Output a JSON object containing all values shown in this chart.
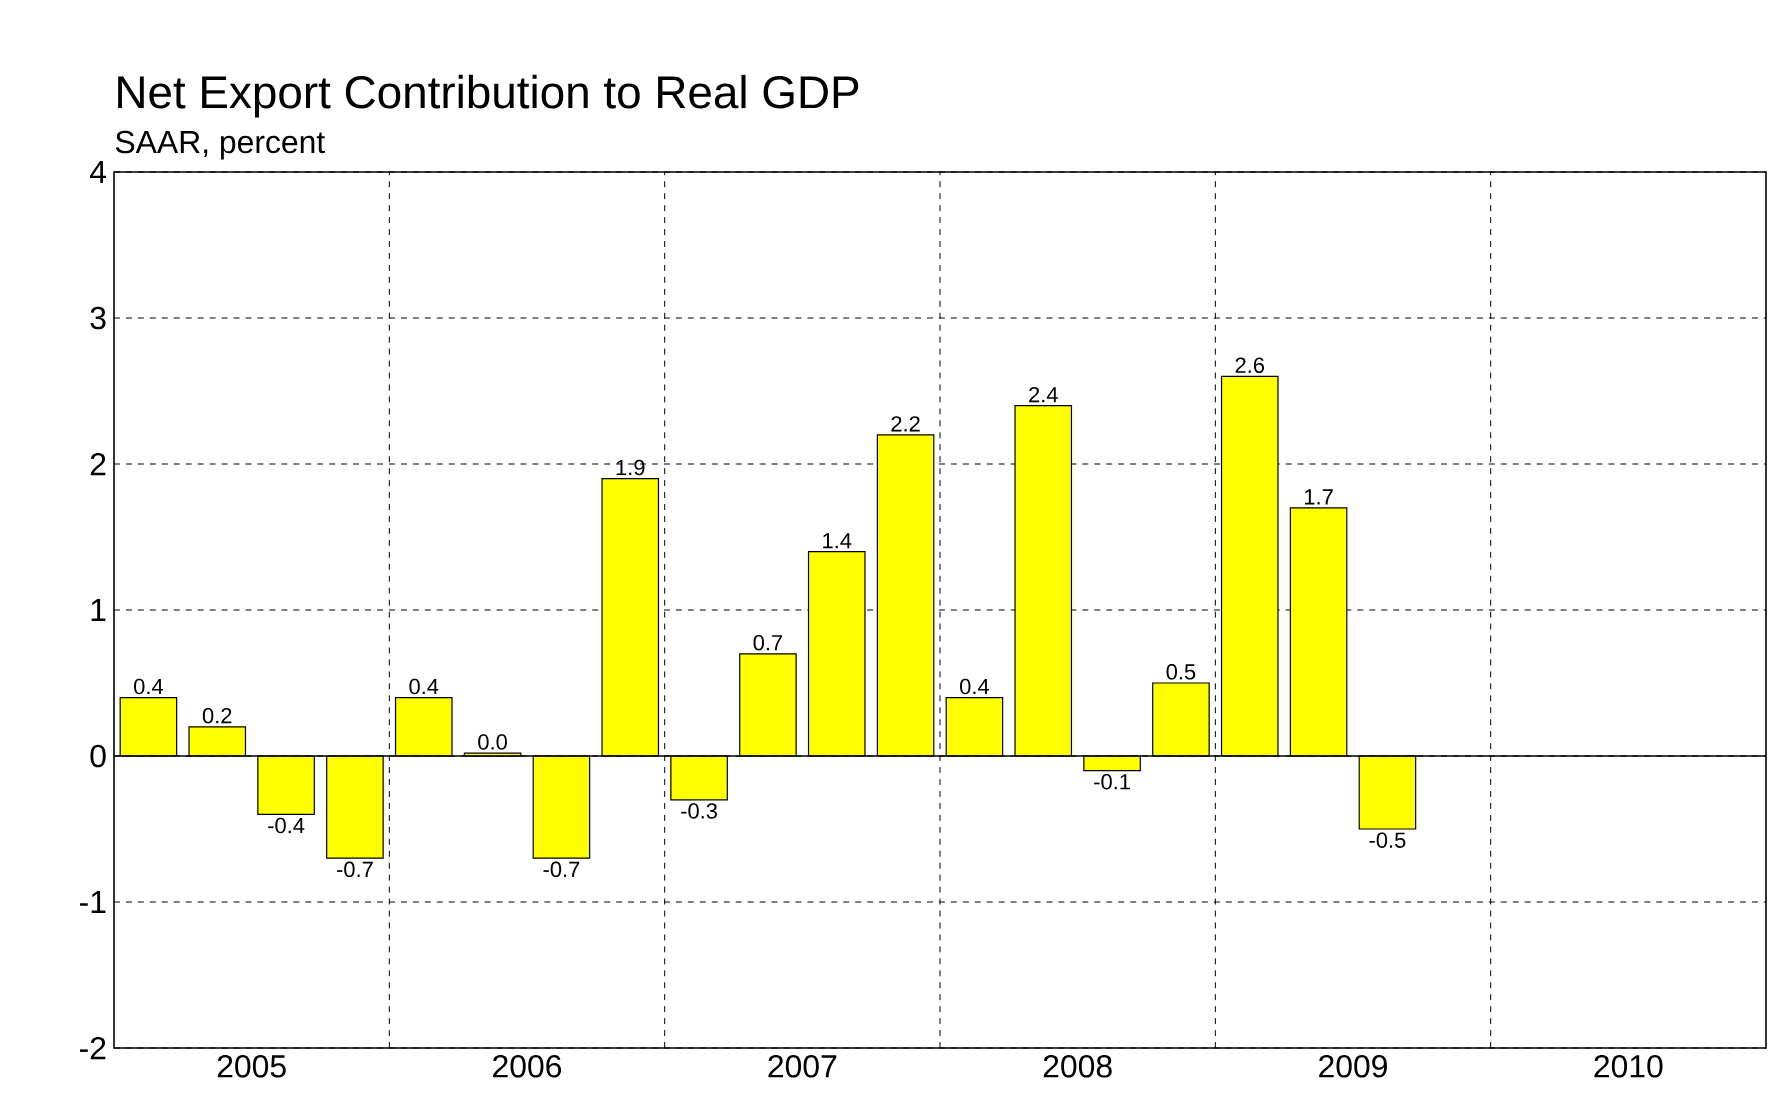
{
  "chart_data": {
    "type": "bar",
    "title": "Net Export Contribution to Real GDP",
    "subtitle": "SAAR, percent",
    "x": [
      2005.125,
      2005.375,
      2005.625,
      2005.875,
      2006.125,
      2006.375,
      2006.625,
      2006.875,
      2007.125,
      2007.375,
      2007.625,
      2007.875,
      2008.125,
      2008.375,
      2008.625,
      2008.875,
      2009.125,
      2009.375,
      2009.625
    ],
    "values": [
      0.4,
      0.2,
      -0.4,
      -0.7,
      0.4,
      0.02,
      -0.7,
      1.9,
      -0.3,
      0.7,
      1.4,
      2.2,
      0.4,
      2.4,
      -0.1,
      0.5,
      2.6,
      1.7,
      -0.5
    ],
    "value_labels": [
      "0.4",
      "0.2",
      "-0.4",
      "-0.7",
      "0.4",
      "0.0",
      "-0.7",
      "1.9",
      "-0.3",
      "0.7",
      "1.4",
      "2.2",
      "0.4",
      "2.4",
      "-0.1",
      "0.5",
      "2.6",
      "1.7",
      "-0.5"
    ],
    "color": "#ffff00",
    "grid": true,
    "xlim": [
      2005,
      2011
    ],
    "xticks": [
      {
        "value": 2005.5,
        "label": "2005"
      },
      {
        "value": 2006,
        "label": null
      },
      {
        "value": 2006.5,
        "label": "2006"
      },
      {
        "value": 2007,
        "label": null
      },
      {
        "value": 2007.5,
        "label": "2007"
      },
      {
        "value": 2008,
        "label": null
      },
      {
        "value": 2008.5,
        "label": "2008"
      },
      {
        "value": 2009,
        "label": null
      },
      {
        "value": 2009.5,
        "label": "2009"
      },
      {
        "value": 2010,
        "label": null
      },
      {
        "value": 2010.5,
        "label": "2010"
      }
    ],
    "ylim": [
      -2,
      4
    ],
    "yticks": [
      -2,
      -1,
      0,
      1,
      2,
      3,
      4
    ]
  }
}
